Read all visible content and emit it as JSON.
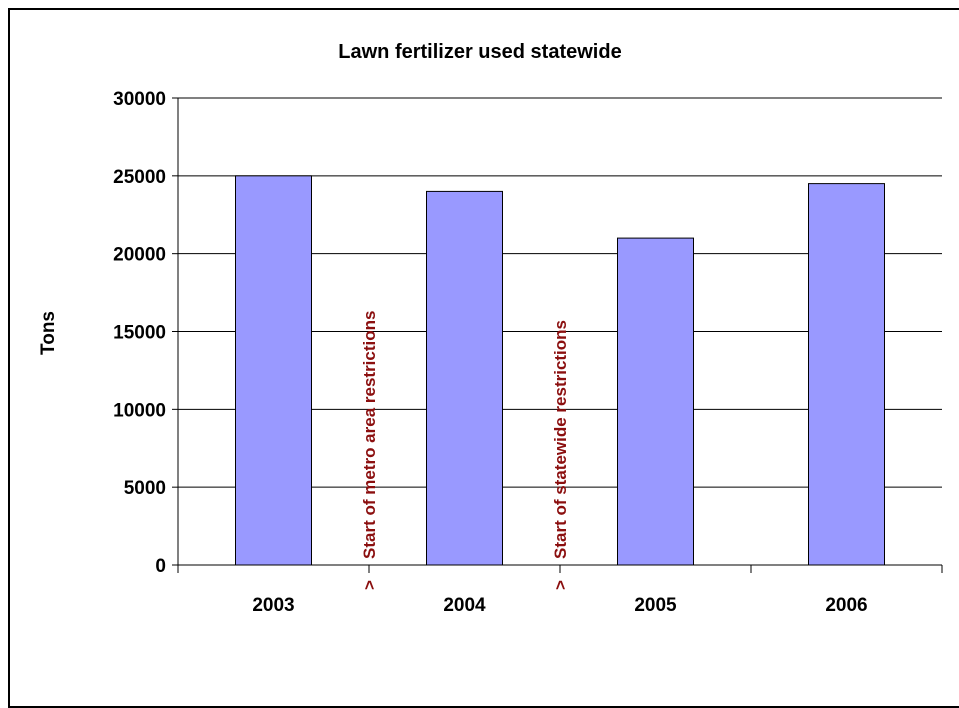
{
  "chart_data": {
    "type": "bar",
    "title": "Lawn fertilizer used statewide",
    "xlabel": "",
    "ylabel": "Tons",
    "categories": [
      "2003",
      "2004",
      "2005",
      "2006"
    ],
    "values": [
      25000,
      24000,
      21000,
      24500
    ],
    "ylim": [
      0,
      30000
    ],
    "yticks": [
      "0",
      "5000",
      "10000",
      "15000",
      "20000",
      "25000",
      "30000"
    ],
    "grid": true,
    "legend": "none",
    "colors": {
      "bar": "#9999ff",
      "bar_stroke": "#000000",
      "annotation": "#8b0f0f",
      "grid": "#000000"
    },
    "annotations": [
      {
        "text": "Start of metro area restrictions",
        "marker": ">",
        "after_category": "2003"
      },
      {
        "text": "Start of statewide restrictions",
        "marker": ">",
        "after_category": "2004"
      }
    ]
  }
}
